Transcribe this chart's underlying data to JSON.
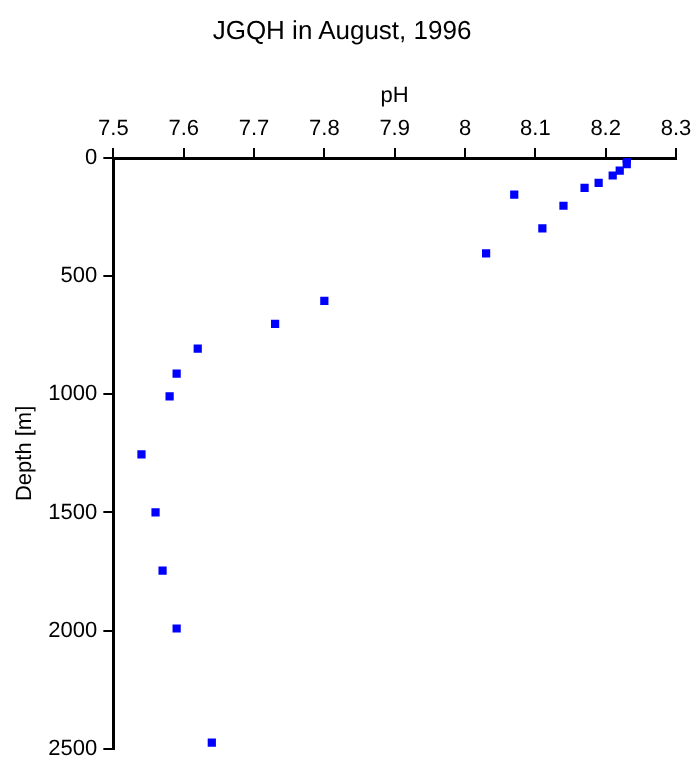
{
  "chart_data": {
    "type": "scatter",
    "title": "JGQH in August, 1996",
    "xlabel": "pH",
    "ylabel": "Depth [m]",
    "x": [
      8.23,
      8.23,
      8.22,
      8.21,
      8.19,
      8.17,
      8.07,
      8.14,
      8.11,
      8.03,
      7.8,
      7.73,
      7.62,
      7.59,
      7.58,
      7.54,
      7.56,
      7.57,
      7.59,
      7.64
    ],
    "series": [
      {
        "color": "#0000ff",
        "values": [
          5,
          26,
          53,
          74,
          105,
          126,
          155,
          202,
          298,
          404,
          605,
          702,
          807,
          912,
          1009,
          1254,
          1500,
          1746,
          1991,
          2474
        ]
      }
    ],
    "xlim": [
      7.5,
      8.3
    ],
    "xticks": [
      7.5,
      7.6,
      7.7,
      7.8,
      7.9,
      8,
      8.1,
      8.2,
      8.3
    ],
    "ylim": [
      2500,
      0
    ],
    "yticks": [
      0,
      500,
      1000,
      1500,
      2000,
      2500
    ],
    "grid": false,
    "legend": false,
    "marker": "square"
  }
}
